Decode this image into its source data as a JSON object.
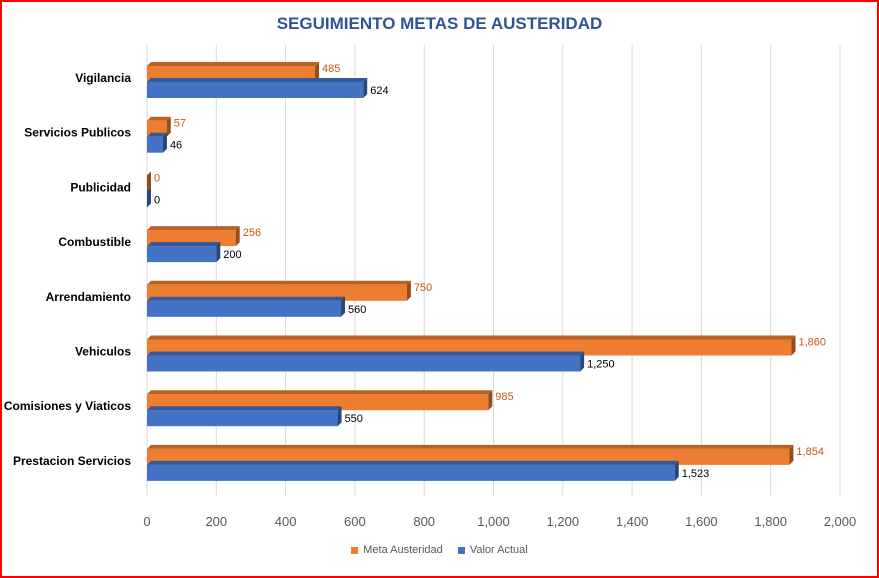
{
  "chart_data": {
    "type": "bar",
    "orientation": "horizontal",
    "title": "SEGUIMIENTO METAS DE AUSTERIDAD",
    "categories": [
      "Vigilancia",
      "Servicios Publicos",
      "Publicidad",
      "Combustible",
      "Arrendamiento",
      "Vehiculos",
      "Comisiones y Viaticos",
      "Prestacion Servicios"
    ],
    "series": [
      {
        "name": "Meta Austeridad",
        "color": "#ed7d31",
        "label_color": "#c55a11",
        "values": [
          485,
          57,
          0,
          256,
          750,
          1860,
          985,
          1854
        ],
        "labels": [
          "485",
          "57",
          "0",
          "256",
          "750",
          "1,860",
          "985",
          "1,854"
        ]
      },
      {
        "name": "Valor Actual",
        "color": "#4472c4",
        "label_color": "#000000",
        "values": [
          624,
          46,
          0,
          200,
          560,
          1250,
          550,
          1523
        ],
        "labels": [
          "624",
          "46",
          "0",
          "200",
          "560",
          "1,250",
          "550",
          "1,523"
        ]
      }
    ],
    "xlim": [
      0,
      2000
    ],
    "xticks": [
      0,
      200,
      400,
      600,
      800,
      1000,
      1200,
      1400,
      1600,
      1800,
      2000
    ],
    "xtick_labels": [
      "0",
      "200",
      "400",
      "600",
      "800",
      "1,000",
      "1,200",
      "1,400",
      "1,600",
      "1,800",
      "2,000"
    ],
    "grid": true,
    "legend_position": "bottom",
    "border_color": "#ff0000",
    "title_color": "#2f5597"
  }
}
